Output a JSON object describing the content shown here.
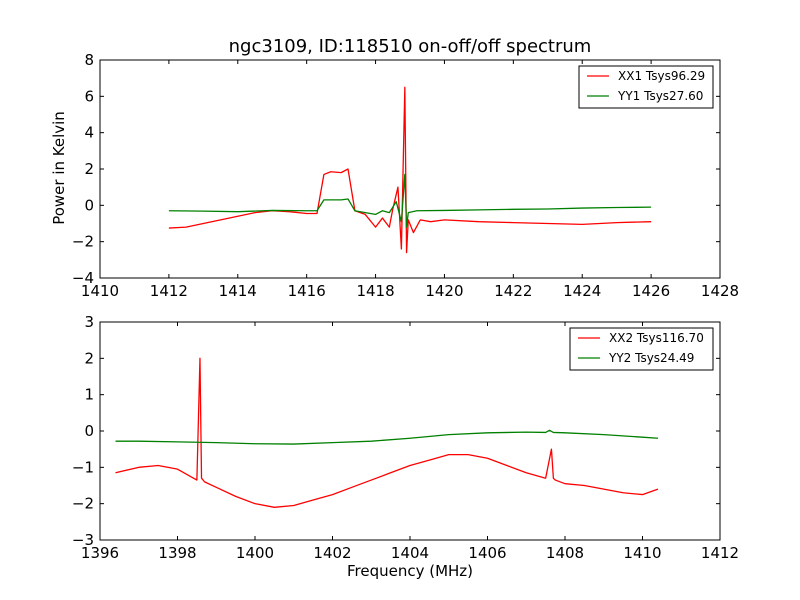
{
  "chart_data": [
    {
      "type": "line",
      "title": "ngc3109, ID:118510 on-off/off spectrum",
      "xlabel": "",
      "ylabel": "Power in Kelvin",
      "xlim": [
        1410,
        1428
      ],
      "ylim": [
        -4,
        8
      ],
      "xticks": [
        "1410",
        "1412",
        "1414",
        "1416",
        "1418",
        "1420",
        "1422",
        "1424",
        "1426",
        "1428"
      ],
      "yticks": [
        "−4",
        "−2",
        "0",
        "2",
        "4",
        "6",
        "8"
      ],
      "grid": false,
      "legend_position": "top-right",
      "series": [
        {
          "name": "XX1 Tsys96.29",
          "color": "#ff0000",
          "x": [
            1412.0,
            1412.5,
            1413.0,
            1413.5,
            1414.0,
            1414.5,
            1415.0,
            1415.5,
            1416.0,
            1416.3,
            1416.5,
            1416.7,
            1417.0,
            1417.2,
            1417.4,
            1417.7,
            1418.0,
            1418.2,
            1418.4,
            1418.5,
            1418.65,
            1418.75,
            1418.85,
            1418.9,
            1418.95,
            1419.1,
            1419.3,
            1419.6,
            1420.0,
            1421.0,
            1422.0,
            1423.0,
            1424.0,
            1425.0,
            1426.0
          ],
          "y": [
            -1.25,
            -1.2,
            -1.0,
            -0.8,
            -0.6,
            -0.4,
            -0.3,
            -0.35,
            -0.45,
            -0.45,
            1.7,
            1.85,
            1.8,
            2.0,
            -0.3,
            -0.5,
            -1.2,
            -0.7,
            -1.2,
            -0.2,
            1.0,
            -2.4,
            6.5,
            -2.6,
            -0.8,
            -1.5,
            -0.8,
            -0.9,
            -0.8,
            -0.9,
            -0.95,
            -1.0,
            -1.05,
            -0.95,
            -0.9
          ]
        },
        {
          "name": "YY1 Tsys27.60",
          "color": "#008000",
          "x": [
            1412.0,
            1413.0,
            1414.0,
            1415.0,
            1416.0,
            1416.3,
            1416.5,
            1417.0,
            1417.2,
            1417.4,
            1417.7,
            1418.0,
            1418.2,
            1418.4,
            1418.6,
            1418.75,
            1418.85,
            1418.9,
            1418.95,
            1419.2,
            1420.0,
            1421.0,
            1422.0,
            1423.0,
            1424.0,
            1425.0,
            1426.0
          ],
          "y": [
            -0.3,
            -0.32,
            -0.35,
            -0.28,
            -0.3,
            -0.3,
            0.3,
            0.3,
            0.35,
            -0.3,
            -0.4,
            -0.5,
            -0.3,
            -0.4,
            0.2,
            -0.9,
            1.7,
            -1.2,
            -0.4,
            -0.3,
            -0.28,
            -0.25,
            -0.22,
            -0.2,
            -0.15,
            -0.12,
            -0.1
          ]
        }
      ]
    },
    {
      "type": "line",
      "title": "",
      "xlabel": "Frequency (MHz)",
      "ylabel": "",
      "xlim": [
        1396,
        1412
      ],
      "ylim": [
        -3,
        3
      ],
      "xticks": [
        "1396",
        "1398",
        "1400",
        "1402",
        "1404",
        "1406",
        "1408",
        "1410",
        "1412"
      ],
      "yticks": [
        "−3",
        "−2",
        "−1",
        "0",
        "1",
        "2",
        "3"
      ],
      "grid": false,
      "legend_position": "top-right",
      "series": [
        {
          "name": "XX2 Tsys116.70",
          "color": "#ff0000",
          "x": [
            1396.4,
            1397.0,
            1397.5,
            1398.0,
            1398.5,
            1398.58,
            1398.62,
            1398.7,
            1399.0,
            1399.5,
            1400.0,
            1400.5,
            1401.0,
            1401.5,
            1402.0,
            1402.5,
            1403.0,
            1403.5,
            1404.0,
            1404.5,
            1405.0,
            1405.5,
            1406.0,
            1406.5,
            1407.0,
            1407.5,
            1407.65,
            1407.7,
            1407.75,
            1408.0,
            1408.5,
            1409.0,
            1409.5,
            1410.0,
            1410.4
          ],
          "y": [
            -1.15,
            -1.0,
            -0.95,
            -1.05,
            -1.35,
            2.0,
            -1.3,
            -1.4,
            -1.55,
            -1.8,
            -2.0,
            -2.1,
            -2.05,
            -1.9,
            -1.75,
            -1.55,
            -1.35,
            -1.15,
            -0.95,
            -0.8,
            -0.65,
            -0.65,
            -0.75,
            -0.95,
            -1.15,
            -1.3,
            -0.5,
            -1.3,
            -1.35,
            -1.45,
            -1.5,
            -1.6,
            -1.7,
            -1.75,
            -1.6
          ]
        },
        {
          "name": "YY2 Tsys24.49",
          "color": "#008000",
          "x": [
            1396.4,
            1397.0,
            1398.0,
            1399.0,
            1400.0,
            1401.0,
            1402.0,
            1403.0,
            1404.0,
            1405.0,
            1406.0,
            1407.0,
            1407.5,
            1407.6,
            1407.7,
            1408.0,
            1409.0,
            1410.0,
            1410.4
          ],
          "y": [
            -0.28,
            -0.28,
            -0.3,
            -0.32,
            -0.35,
            -0.36,
            -0.32,
            -0.28,
            -0.2,
            -0.1,
            -0.05,
            -0.03,
            -0.04,
            0.02,
            -0.04,
            -0.05,
            -0.1,
            -0.17,
            -0.2
          ]
        }
      ]
    }
  ]
}
